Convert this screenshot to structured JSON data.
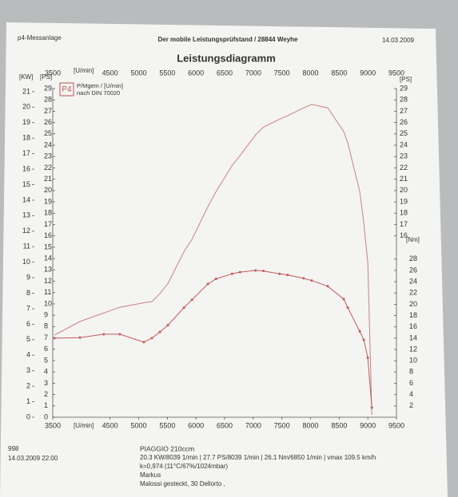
{
  "header": {
    "left": "p4-Messanlage",
    "center": "Der mobile Leistungsprüfstand / 28844 Weyhe",
    "right": "14.03.2009"
  },
  "chart_data": {
    "type": "line",
    "title": "Leistungsdiagramm",
    "legend_line1": "P/Mgem / [U/min]",
    "legend_line2": "nach DIN 70020",
    "logo": "P4",
    "x_label": "[U/min]",
    "y_label": "[PS]",
    "kw_label": "[KW]",
    "ps_right_label": "[PS]",
    "y2_label": "[Nm]",
    "xlim": [
      3500,
      9500
    ],
    "xticks": [
      3500,
      4500,
      5000,
      5500,
      6000,
      6500,
      7000,
      7500,
      8000,
      8500,
      9000,
      9500
    ],
    "ylim": [
      0,
      29
    ],
    "yticks": [
      0,
      1,
      2,
      3,
      4,
      5,
      6,
      7,
      8,
      9,
      10,
      11,
      12,
      13,
      14,
      15,
      16,
      17,
      18,
      19,
      20,
      21,
      22,
      23,
      24,
      25,
      26,
      27,
      28,
      29
    ],
    "kw_lim": [
      0,
      21.2
    ],
    "kw_ticks": [
      0,
      1,
      2,
      3,
      4,
      5,
      6,
      7,
      8,
      9,
      10,
      11,
      12,
      13,
      14,
      15,
      16,
      17,
      18,
      19,
      20,
      21
    ],
    "ps_right_ticks": [
      16,
      17,
      18,
      19,
      20,
      21,
      22,
      23,
      24,
      25,
      26,
      27,
      28,
      29
    ],
    "y2lim": [
      0,
      58.2
    ],
    "y2ticks": [
      2,
      4,
      6,
      8,
      10,
      12,
      14,
      16,
      18,
      20,
      22,
      24,
      26,
      28
    ],
    "x": [
      3530,
      3975,
      4390,
      4670,
      5090,
      5230,
      5370,
      5510,
      5790,
      5930,
      6210,
      6350,
      6630,
      6770,
      7040,
      7180,
      7460,
      7600,
      7880,
      8020,
      8300,
      8580,
      8650,
      8860,
      8930,
      9000,
      9070
    ],
    "series": [
      {
        "color": "#c98282",
        "values": [
          7.25,
          8.45,
          9.2,
          9.7,
          10.1,
          10.2,
          10.9,
          11.8,
          14.6,
          15.7,
          18.6,
          19.9,
          22.2,
          23.1,
          24.9,
          25.6,
          26.3,
          26.6,
          27.3,
          27.6,
          27.3,
          25.2,
          24.2,
          19.9,
          17.1,
          13.6,
          0.2
        ]
      },
      {
        "color": "#c25a5a",
        "axis": "y2",
        "markers": true,
        "values": [
          14.0,
          14.1,
          14.7,
          14.7,
          13.3,
          14.0,
          15.1,
          16.3,
          19.4,
          20.8,
          23.6,
          24.5,
          25.4,
          25.7,
          26.0,
          25.9,
          25.4,
          25.2,
          24.6,
          24.2,
          23.2,
          20.9,
          19.4,
          15.2,
          13.7,
          10.5,
          1.7
        ]
      }
    ]
  },
  "footer": {
    "id": "998",
    "date": "14.03.2009  22:00",
    "vehicle": "PIAGGIO 210ccm",
    "results": "20.3 KW/8039 1/min  |  27.7 PS/8039 1/min  |  26.1 Nm/6850 1/min  |  vmax  109.5 km/h",
    "conditions": "k=0,974 (11°C/67%/1024mbar)",
    "operator": "Markus",
    "note": "Malossi gesteckt, 30 Dellorto ,"
  }
}
